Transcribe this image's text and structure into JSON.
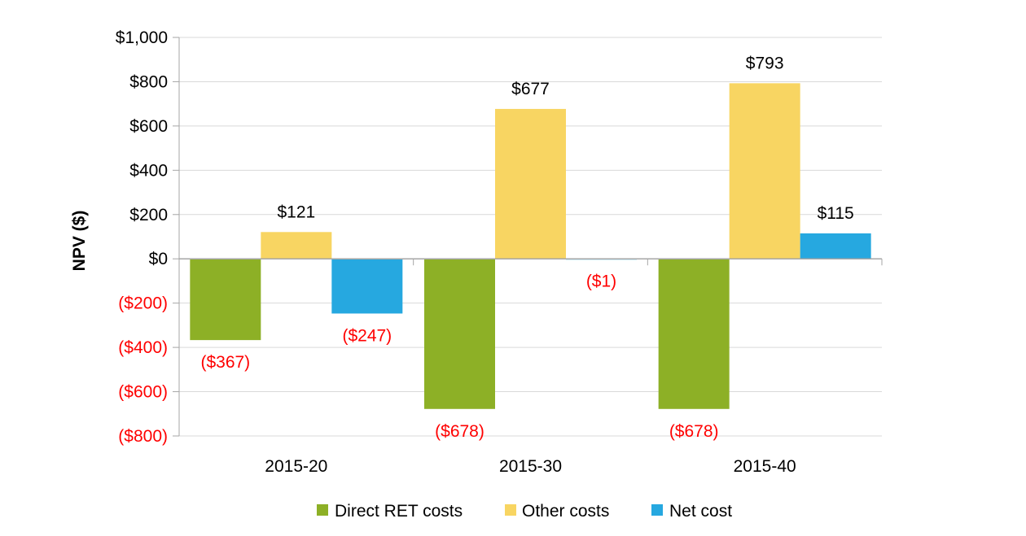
{
  "chart_data": {
    "type": "bar",
    "title": "",
    "xlabel": "",
    "ylabel": "NPV ($)",
    "ylim": [
      -800,
      1000
    ],
    "ytick_step": 200,
    "ytick_labels": [
      "($800)",
      "($600)",
      "($400)",
      "($200)",
      "$0",
      "$200",
      "$400",
      "$600",
      "$800",
      "$1,000"
    ],
    "grid": true,
    "legend_position": "bottom",
    "categories": [
      "2015-20",
      "2015-30",
      "2015-40"
    ],
    "series": [
      {
        "name": "Direct RET costs",
        "color": "#8DB026",
        "values": [
          -367,
          -678,
          -678
        ],
        "labels": [
          "($367)",
          "($678)",
          "($678)"
        ]
      },
      {
        "name": "Other costs",
        "color": "#F8D562",
        "values": [
          121,
          677,
          793
        ],
        "labels": [
          "$121",
          "$677",
          "$793"
        ]
      },
      {
        "name": "Net cost",
        "color": "#26A8E0",
        "values": [
          -247,
          -1,
          115
        ],
        "labels": [
          "($247)",
          "($1)",
          "$115"
        ]
      }
    ],
    "colors": {
      "negative_label": "#FF0000",
      "positive_label": "#000000",
      "grid": "#D9D9D9",
      "axis": "#A6A6A6"
    }
  }
}
